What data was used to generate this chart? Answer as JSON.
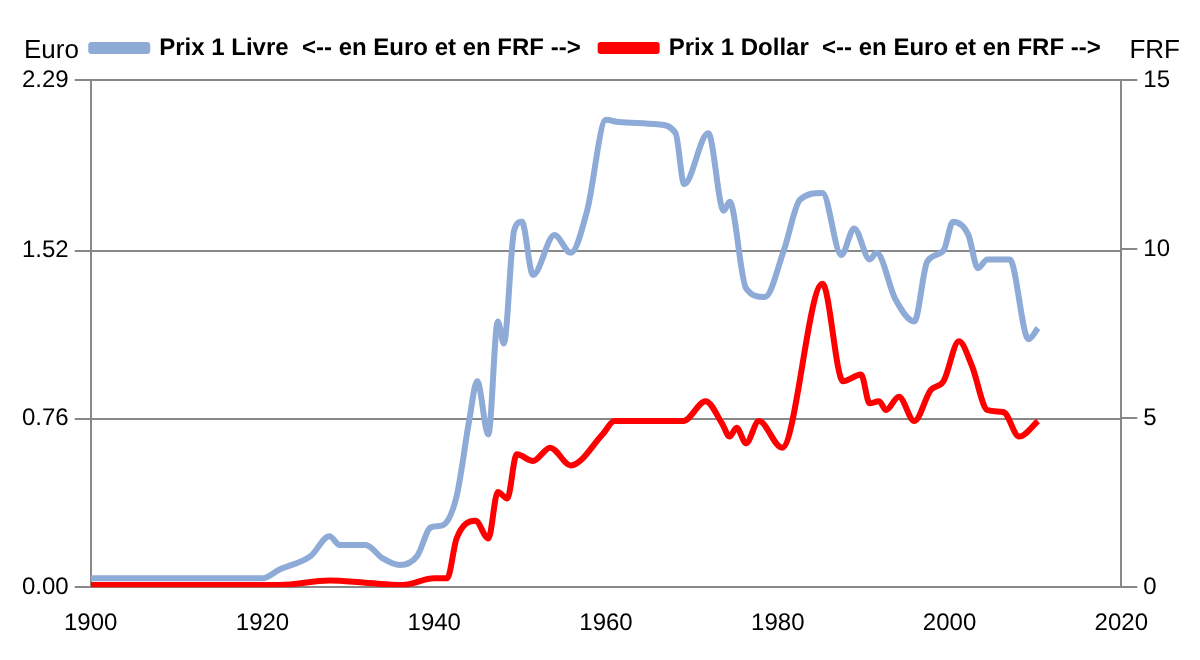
{
  "chart_data": {
    "type": "line",
    "ylabel": "Euro",
    "y2label": "FRF",
    "xlim": [
      1900,
      2020
    ],
    "xticks": [
      1900,
      1920,
      1940,
      1960,
      1980,
      2000,
      2020
    ],
    "ylim": [
      0,
      2.29
    ],
    "yticks": [
      {
        "value": 0,
        "label": "0.00"
      },
      0.76,
      1.52,
      2.29
    ],
    "y2lim": [
      0,
      15
    ],
    "y2ticks": [
      0,
      5,
      10,
      15
    ],
    "grid": "y",
    "legend": "top",
    "marker": "none",
    "line_style": "solid",
    "series": [
      {
        "name": "Prix 1 Livre  <-- en Euro et en FRF -->",
        "color": "#8eaad6",
        "x": [
          1900,
          1910,
          1920,
          1922,
          1925.6,
          1927.8,
          1929,
          1932,
          1934,
          1936,
          1938,
          1939.6,
          1941,
          1942.6,
          1944.1,
          1945,
          1946.3,
          1947.4,
          1948.1,
          1949.3,
          1950.2,
          1951.5,
          1954,
          1955.9,
          1957.8,
          1960,
          1961.5,
          1966,
          1968.1,
          1969.1,
          1971.9,
          1973.7,
          1974.4,
          1976.3,
          1978.5,
          1980.7,
          1982.6,
          1985.2,
          1987.4,
          1988.9,
          1990.7,
          1991.5,
          1993.7,
          1995.9,
          1997.4,
          1999.3,
          2000.4,
          2002.2,
          2003.3,
          2004.4,
          2007,
          2009.2,
          2010.3
        ],
        "values": [
          0.04,
          0.04,
          0.04,
          0.08,
          0.14,
          0.23,
          0.19,
          0.19,
          0.13,
          0.1,
          0.14,
          0.27,
          0.28,
          0.41,
          0.76,
          0.93,
          0.69,
          1.2,
          1.1,
          1.61,
          1.65,
          1.41,
          1.59,
          1.51,
          1.7,
          2.11,
          2.1,
          2.09,
          2.05,
          1.82,
          2.05,
          1.7,
          1.74,
          1.35,
          1.31,
          1.52,
          1.75,
          1.78,
          1.5,
          1.62,
          1.48,
          1.51,
          1.3,
          1.2,
          1.47,
          1.52,
          1.65,
          1.59,
          1.44,
          1.48,
          1.48,
          1.12,
          1.17
        ]
      },
      {
        "name": "Prix 1 Dollar  <-- en Euro et en FRF -->",
        "color": "#ff0000",
        "x": [
          1900,
          1910,
          1920,
          1922,
          1927.8,
          1932,
          1936.3,
          1940,
          1941.5,
          1942.6,
          1944.8,
          1946.3,
          1947.4,
          1948.5,
          1949.6,
          1951.5,
          1953.5,
          1955.9,
          1959.6,
          1961,
          1969,
          1971.6,
          1973.5,
          1974.4,
          1975.2,
          1976.3,
          1977.8,
          1980.5,
          1985.2,
          1987.6,
          1989.7,
          1990.7,
          1991.8,
          1992.6,
          1994.1,
          1995.9,
          1997.8,
          1999.3,
          2001.1,
          2002.6,
          2004.4,
          2006.3,
          2008.1,
          2010.3
        ],
        "values": [
          0.01,
          0.01,
          0.01,
          0.01,
          0.03,
          0.02,
          0.01,
          0.04,
          0.04,
          0.22,
          0.3,
          0.22,
          0.43,
          0.4,
          0.6,
          0.57,
          0.63,
          0.55,
          0.69,
          0.75,
          0.75,
          0.84,
          0.74,
          0.68,
          0.72,
          0.65,
          0.75,
          0.63,
          1.37,
          0.93,
          0.96,
          0.83,
          0.84,
          0.8,
          0.86,
          0.75,
          0.89,
          0.93,
          1.11,
          1.0,
          0.8,
          0.79,
          0.68,
          0.75
        ]
      }
    ]
  }
}
